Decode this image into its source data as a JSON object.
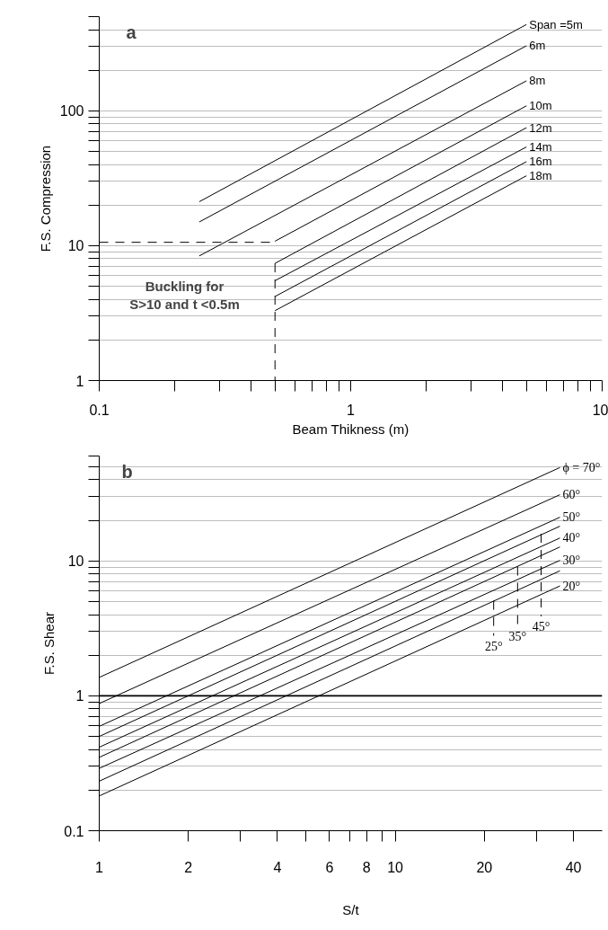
{
  "chart_data": [
    {
      "type": "line",
      "title": "a",
      "xlabel": "Beam Thikness (m)",
      "ylabel": "F.S. Compression",
      "log": "xy",
      "grid": "y",
      "marker": "none",
      "line_style": "solid",
      "annotations": [
        "Buckling for\nS>10 and t <0.5m"
      ],
      "xlim": [
        0.1,
        10
      ],
      "ylim": [
        1,
        500
      ],
      "xticks": [
        0.1,
        {
          "value": 0.2,
          "label": null
        },
        {
          "value": 0.3,
          "label": null
        },
        {
          "value": 0.4,
          "label": null
        },
        {
          "value": 0.5,
          "label": null
        },
        {
          "value": 0.6,
          "label": null
        },
        {
          "value": 0.7,
          "label": null
        },
        {
          "value": 0.8,
          "label": null
        },
        {
          "value": 0.9,
          "label": null
        },
        1,
        {
          "value": 2,
          "label": null
        },
        {
          "value": 3,
          "label": null
        },
        {
          "value": 4,
          "label": null
        },
        {
          "value": 5,
          "label": null
        },
        {
          "value": 6,
          "label": null
        },
        {
          "value": 7,
          "label": null
        },
        {
          "value": 8,
          "label": null
        },
        {
          "value": 9,
          "label": null
        },
        10
      ],
      "yticks": [
        1,
        {
          "value": 2,
          "label": null
        },
        {
          "value": 3,
          "label": null
        },
        {
          "value": 4,
          "label": null
        },
        {
          "value": 5,
          "label": null
        },
        {
          "value": 6,
          "label": null
        },
        {
          "value": 7,
          "label": null
        },
        {
          "value": 8,
          "label": null
        },
        {
          "value": 9,
          "label": null
        },
        10,
        {
          "value": 20,
          "label": null
        },
        {
          "value": 30,
          "label": null
        },
        {
          "value": 40,
          "label": null
        },
        {
          "value": 50,
          "label": null
        },
        {
          "value": 60,
          "label": null
        },
        {
          "value": 70,
          "label": null
        },
        {
          "value": 80,
          "label": null
        },
        {
          "value": 90,
          "label": null
        },
        100,
        {
          "value": 200,
          "label": null
        },
        {
          "value": 300,
          "label": null
        },
        {
          "value": 400,
          "label": null
        },
        {
          "value": 500,
          "label": null
        }
      ],
      "series": [
        {
          "name": "Span =5m",
          "color": "#000000",
          "x": [
            0.25,
            5
          ],
          "values": [
            21.2,
            437
          ]
        },
        {
          "name": "6m",
          "color": "#000000",
          "x": [
            0.25,
            5
          ],
          "values": [
            15.0,
            304
          ]
        },
        {
          "name": "8m",
          "color": "#000000",
          "x": [
            0.25,
            5
          ],
          "values": [
            8.4,
            167
          ]
        },
        {
          "name": "10m",
          "color": "#000000",
          "x": [
            0.5,
            5
          ],
          "values": [
            10.8,
            109
          ]
        },
        {
          "name": "12m",
          "color": "#000000",
          "x": [
            0.5,
            5
          ],
          "values": [
            7.4,
            75
          ]
        },
        {
          "name": "14m",
          "color": "#000000",
          "x": [
            0.5,
            5
          ],
          "values": [
            5.5,
            54
          ]
        },
        {
          "name": "16m",
          "color": "#000000",
          "x": [
            0.5,
            5
          ],
          "values": [
            4.2,
            42
          ]
        },
        {
          "name": "18m",
          "color": "#000000",
          "x": [
            0.5,
            5
          ],
          "values": [
            3.3,
            33
          ]
        },
        {
          "color": "#000000",
          "line_style": "dashed",
          "x": [
            0.1,
            0.5
          ],
          "values": [
            10.6,
            10.6
          ]
        },
        {
          "color": "#000000",
          "line_style": "dashed",
          "x": [
            0.5,
            0.5
          ],
          "values": [
            7.4,
            1
          ]
        }
      ]
    },
    {
      "type": "line",
      "title": "b",
      "xlabel": "S/t",
      "ylabel": "F.S. Shear",
      "log": "xy",
      "grid": "y",
      "marker": "none",
      "line_style": "solid",
      "ref_lines": [
        {
          "axis": "y",
          "value": 1,
          "color": "#000000"
        }
      ],
      "xlim": [
        1,
        50
      ],
      "ylim": [
        0.1,
        60
      ],
      "xticks": [
        1,
        2,
        {
          "value": 3,
          "label": null
        },
        4,
        {
          "value": 5,
          "label": null
        },
        6,
        {
          "value": 7,
          "label": null
        },
        8,
        {
          "value": 9,
          "label": null
        },
        10,
        20,
        {
          "value": 30,
          "label": null
        },
        40
      ],
      "yticks": [
        0.1,
        {
          "value": 0.2,
          "label": null
        },
        {
          "value": 0.3,
          "label": null
        },
        {
          "value": 0.4,
          "label": null
        },
        {
          "value": 0.5,
          "label": null
        },
        {
          "value": 0.6,
          "label": null
        },
        {
          "value": 0.7,
          "label": null
        },
        {
          "value": 0.8,
          "label": null
        },
        {
          "value": 0.9,
          "label": null
        },
        1,
        {
          "value": 2,
          "label": null
        },
        {
          "value": 3,
          "label": null
        },
        {
          "value": 4,
          "label": null
        },
        {
          "value": 5,
          "label": null
        },
        {
          "value": 6,
          "label": null
        },
        {
          "value": 7,
          "label": null
        },
        {
          "value": 8,
          "label": null
        },
        {
          "value": 9,
          "label": null
        },
        10,
        {
          "value": 20,
          "label": null
        },
        {
          "value": 30,
          "label": null
        },
        {
          "value": 40,
          "label": null
        },
        {
          "value": 50,
          "label": null
        },
        {
          "value": 60,
          "label": null
        }
      ],
      "series": [
        {
          "name": "ϕ = 70°",
          "color": "#000000",
          "x": [
            1,
            36
          ],
          "values": [
            1.37,
            49.3
          ]
        },
        {
          "name": "60°",
          "color": "#000000",
          "x": [
            1,
            36
          ],
          "values": [
            0.877,
            31.0
          ]
        },
        {
          "name": "50°",
          "color": "#000000",
          "x": [
            1,
            36
          ],
          "values": [
            0.594,
            21.1
          ]
        },
        {
          "color": "#000000",
          "x": [
            1,
            36
          ],
          "values": [
            0.5,
            18.1
          ]
        },
        {
          "name": "40°",
          "color": "#000000",
          "x": [
            1,
            36
          ],
          "values": [
            0.416,
            14.8
          ]
        },
        {
          "color": "#000000",
          "x": [
            1,
            36
          ],
          "values": [
            0.35,
            12.7
          ]
        },
        {
          "name": "30°",
          "color": "#000000",
          "x": [
            1,
            36
          ],
          "values": [
            0.29,
            10.1
          ]
        },
        {
          "color": "#000000",
          "x": [
            1,
            36
          ],
          "values": [
            0.233,
            8.45
          ]
        },
        {
          "name": "20°",
          "color": "#000000",
          "x": [
            1,
            36
          ],
          "values": [
            0.181,
            6.53
          ]
        },
        {
          "name": "25°",
          "color": "#000000",
          "line_style": "dashed",
          "x": [
            21.5,
            21.5
          ],
          "values": [
            5.07,
            2.79
          ]
        },
        {
          "name": "35°",
          "color": "#000000",
          "line_style": "dashed",
          "x": [
            25.9,
            25.9
          ],
          "values": [
            9.09,
            3.3
          ]
        },
        {
          "name": "45°",
          "color": "#000000",
          "line_style": "dashed",
          "x": [
            31.1,
            31.1
          ],
          "values": [
            15.9,
            3.89
          ]
        }
      ]
    }
  ]
}
